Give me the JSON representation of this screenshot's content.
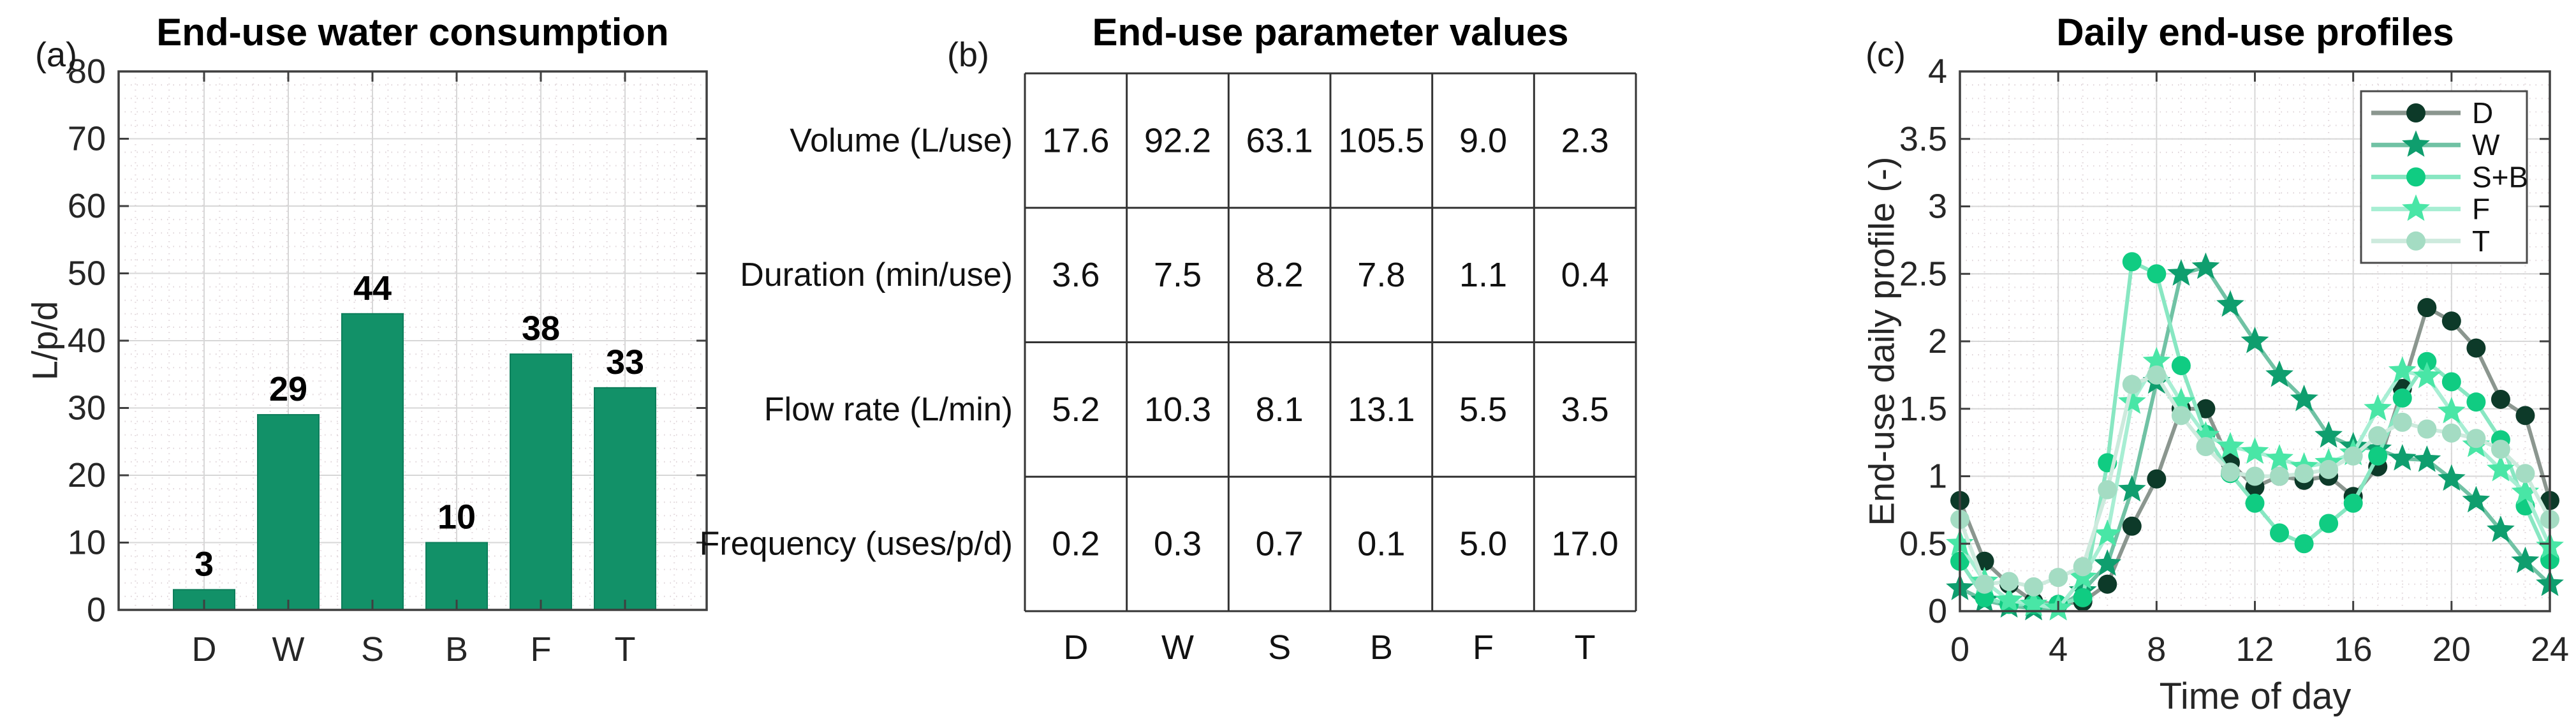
{
  "panels": {
    "a": {
      "tag": "(a)",
      "title": "End-use water consumption",
      "ylabel": "L/p/d"
    },
    "b": {
      "tag": "(b)",
      "title": "End-use parameter values"
    },
    "c": {
      "tag": "(c)",
      "title": "Daily end-use profiles",
      "ylabel": "End-use daily profile (-)",
      "xlabel": "Time of day"
    }
  },
  "colors": {
    "bar_fill": "#129168",
    "bar_edge": "#0d7e5b",
    "axis": "#3f3f3f",
    "grid_major": "#d7d7d7",
    "grid_minor": "#e0d6da",
    "table_line": "#333333",
    "tick_text": "#262626",
    "label_text": "#000000"
  },
  "chart_data": [
    {
      "type": "bar",
      "panel": "(a)",
      "title": "End-use water consumption",
      "ylabel": "L/p/d",
      "categories": [
        "D",
        "W",
        "S",
        "B",
        "F",
        "T"
      ],
      "values": [
        3,
        29,
        44,
        10,
        38,
        33
      ],
      "ylim": [
        0,
        80
      ],
      "ytick_step": 10,
      "grid": true
    },
    {
      "type": "table",
      "panel": "(b)",
      "title": "End-use parameter values",
      "row_labels": [
        "Volume (L/use)",
        "Duration (min/use)",
        "Flow rate (L/min)",
        "Frequency (uses/p/d)"
      ],
      "col_labels": [
        "D",
        "W",
        "S",
        "B",
        "F",
        "T"
      ],
      "values": [
        [
          "17.6",
          "92.2",
          "63.1",
          "105.5",
          "9.0",
          "2.3"
        ],
        [
          "3.6",
          "7.5",
          "8.2",
          "7.8",
          "1.1",
          "0.4"
        ],
        [
          "5.2",
          "10.3",
          "8.1",
          "13.1",
          "5.5",
          "3.5"
        ],
        [
          "0.2",
          "0.3",
          "0.7",
          "0.1",
          "5.0",
          "17.0"
        ]
      ]
    },
    {
      "type": "line",
      "panel": "(c)",
      "title": "Daily end-use profiles",
      "xlabel": "Time of day",
      "ylabel": "End-use daily profile (-)",
      "xlim": [
        0,
        24
      ],
      "ylim": [
        0,
        4
      ],
      "xticks": [
        0,
        4,
        8,
        12,
        16,
        20,
        24
      ],
      "ytick_step": 0.5,
      "grid": true,
      "legend_position": "top-right",
      "x": [
        0,
        1,
        2,
        3,
        4,
        5,
        6,
        7,
        8,
        9,
        10,
        11,
        12,
        13,
        14,
        15,
        16,
        17,
        18,
        19,
        20,
        21,
        22,
        23,
        24
      ],
      "series": [
        {
          "name": "D",
          "marker": "circle",
          "line_color": "#8b968f",
          "marker_color": "#0d3a29",
          "values": [
            0.82,
            0.37,
            0.2,
            0.07,
            0.05,
            0.07,
            0.2,
            0.63,
            0.98,
            1.5,
            1.5,
            1.1,
            0.92,
            1.0,
            0.97,
            1.0,
            0.85,
            1.07,
            1.65,
            2.25,
            2.15,
            1.95,
            1.57,
            1.45,
            0.82
          ]
        },
        {
          "name": "W",
          "marker": "star",
          "line_color": "#70c2a4",
          "marker_color": "#0f9e6e",
          "values": [
            0.17,
            0.08,
            0.04,
            0.02,
            0.02,
            0.15,
            0.35,
            0.9,
            1.7,
            2.5,
            2.55,
            2.27,
            2.0,
            1.75,
            1.57,
            1.3,
            1.22,
            1.2,
            1.13,
            1.12,
            0.98,
            0.82,
            0.6,
            0.37,
            0.2
          ]
        },
        {
          "name": "S+B",
          "marker": "circle",
          "line_color": "#88e7c2",
          "marker_color": "#10cc82",
          "values": [
            0.37,
            0.1,
            0.05,
            0.05,
            0.05,
            0.1,
            1.1,
            2.59,
            2.5,
            1.82,
            1.31,
            1.02,
            0.8,
            0.58,
            0.5,
            0.65,
            0.8,
            1.15,
            1.58,
            1.85,
            1.7,
            1.55,
            1.27,
            0.78,
            0.38
          ]
        },
        {
          "name": "F",
          "marker": "star",
          "line_color": "#a7eed3",
          "marker_color": "#49e6a6",
          "values": [
            0.5,
            0.22,
            0.08,
            0.05,
            0.02,
            0.25,
            0.57,
            1.55,
            1.85,
            1.55,
            1.3,
            1.22,
            1.18,
            1.13,
            1.07,
            1.1,
            1.17,
            1.5,
            1.78,
            1.74,
            1.48,
            1.23,
            1.05,
            0.88,
            0.48
          ]
        },
        {
          "name": "T",
          "marker": "circle",
          "line_color": "#cdeadd",
          "marker_color": "#a4dcc3",
          "values": [
            0.68,
            0.2,
            0.22,
            0.18,
            0.25,
            0.33,
            0.9,
            1.68,
            1.75,
            1.45,
            1.22,
            1.03,
            1.0,
            1.0,
            1.02,
            1.05,
            1.15,
            1.3,
            1.4,
            1.35,
            1.32,
            1.28,
            1.2,
            1.02,
            0.68
          ]
        }
      ]
    }
  ]
}
